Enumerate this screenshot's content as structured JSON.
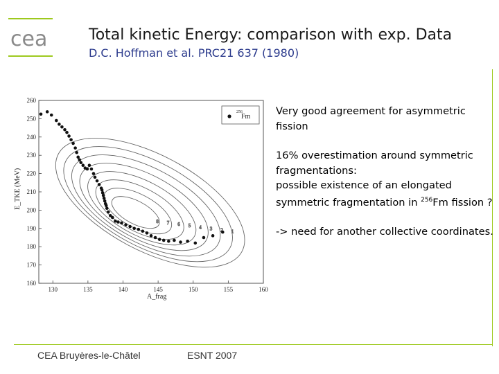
{
  "header": {
    "title": "Total kinetic Energy: comparison with exp. Data",
    "subtitle": "D.C. Hoffman et al. PRC21 637 (1980)",
    "logo_text": "cea"
  },
  "notes": {
    "para1": "Very good agreement for asymmetric fission",
    "para2_line1": "16% overestimation around symmetric fragmentations:",
    "para2_line2_pre": "possible existence of an elongated symmetric fragmentation in ",
    "para2_mass_number": "256",
    "para2_line2_post": "Fm fission ?",
    "para3": "-> need for another collective coordinates."
  },
  "footer": {
    "left": "CEA Bruyères-le-Châtel",
    "center": "ESNT 2007"
  },
  "colors": {
    "accent_green": "#9dc91d",
    "subtitle_blue": "#2b3a8c"
  },
  "chart_data": {
    "type": "scatter",
    "title": "",
    "xlabel": "A_frag",
    "ylabel": "E_TKE (MeV)",
    "xlim": [
      128,
      160
    ],
    "ylim": [
      160,
      260
    ],
    "xticks": [
      130,
      135,
      140,
      145,
      150,
      155,
      160
    ],
    "yticks": [
      160,
      170,
      180,
      190,
      200,
      210,
      220,
      230,
      240,
      250,
      260
    ],
    "legend": {
      "mass": "256",
      "element": "Fm",
      "position": "top-right"
    },
    "contour_labels": [
      "8",
      "7",
      "6",
      "5",
      "4",
      "3",
      "2",
      "1"
    ],
    "series": [
      {
        "x": [
          128.3,
          129.2,
          129.8,
          130.5,
          130.9,
          131.3,
          131.7,
          132.0,
          132.3,
          132.6,
          132.9,
          133.2,
          133.4,
          133.6,
          133.8,
          134.0,
          134.3,
          134.6,
          134.9,
          135.2,
          135.5,
          135.8,
          136.0,
          136.3,
          136.6,
          136.9,
          137.0,
          137.1,
          137.2,
          137.3,
          137.4,
          137.5,
          137.6,
          137.7,
          137.9,
          138.2,
          138.5,
          138.9,
          139.3,
          139.8,
          140.4,
          141.0,
          141.6,
          142.2,
          142.8,
          143.4,
          144.0,
          144.6,
          145.2,
          145.8,
          146.5,
          147.3,
          148.2,
          149.2,
          150.3,
          151.5,
          152.8,
          154.2
        ],
        "y": [
          252.5,
          253.8,
          252.0,
          249.0,
          247.0,
          245.5,
          244.0,
          242.5,
          240.5,
          238.5,
          236.5,
          234.0,
          231.5,
          229.0,
          227.5,
          226.0,
          224.5,
          223.0,
          222.5,
          224.5,
          222.5,
          220.0,
          218.0,
          216.0,
          214.0,
          212.0,
          211.0,
          209.5,
          208.0,
          206.5,
          205.0,
          203.5,
          202.5,
          201.0,
          199.0,
          197.0,
          196.0,
          194.0,
          193.5,
          193.0,
          192.0,
          191.0,
          190.0,
          189.5,
          188.5,
          187.5,
          186.0,
          185.0,
          184.0,
          183.5,
          183.0,
          183.5,
          182.5,
          183.0,
          182.0,
          185.0,
          186.0,
          188.0
        ]
      }
    ]
  }
}
